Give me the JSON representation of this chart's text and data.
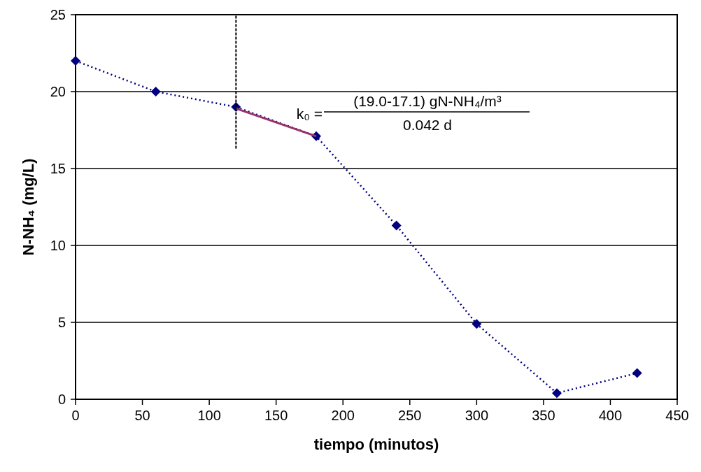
{
  "chart_data": {
    "type": "line",
    "xlabel": "tiempo (minutos)",
    "ylabel": "N-NH₄ (mg/L)",
    "xlim": [
      0,
      450
    ],
    "xticks": [
      0,
      50,
      100,
      150,
      200,
      250,
      300,
      350,
      400,
      450
    ],
    "ylim": [
      0,
      25
    ],
    "yticks": [
      0,
      5,
      10,
      15,
      20,
      25
    ],
    "grid": "y",
    "series": [
      {
        "color": "#000080",
        "x": [
          0,
          60,
          120,
          180,
          240,
          300,
          360,
          420
        ],
        "values": [
          22.0,
          20.0,
          19.0,
          17.1,
          11.3,
          4.9,
          0.4,
          1.7
        ],
        "marker": "diamond",
        "line_style": "dotted"
      },
      {
        "color": "#993366",
        "x": [
          120,
          180
        ],
        "values": [
          18.9,
          17.1
        ],
        "marker": "none",
        "line_style": "solid"
      },
      {
        "color": "#000000",
        "x": [
          120,
          120
        ],
        "values": [
          16.3,
          25
        ],
        "marker": "none",
        "line_style": "dashed"
      }
    ],
    "annotations": [
      "k₀ =",
      "(19.0-17.1) gN-NH₄/m³",
      "0.042 d"
    ]
  }
}
